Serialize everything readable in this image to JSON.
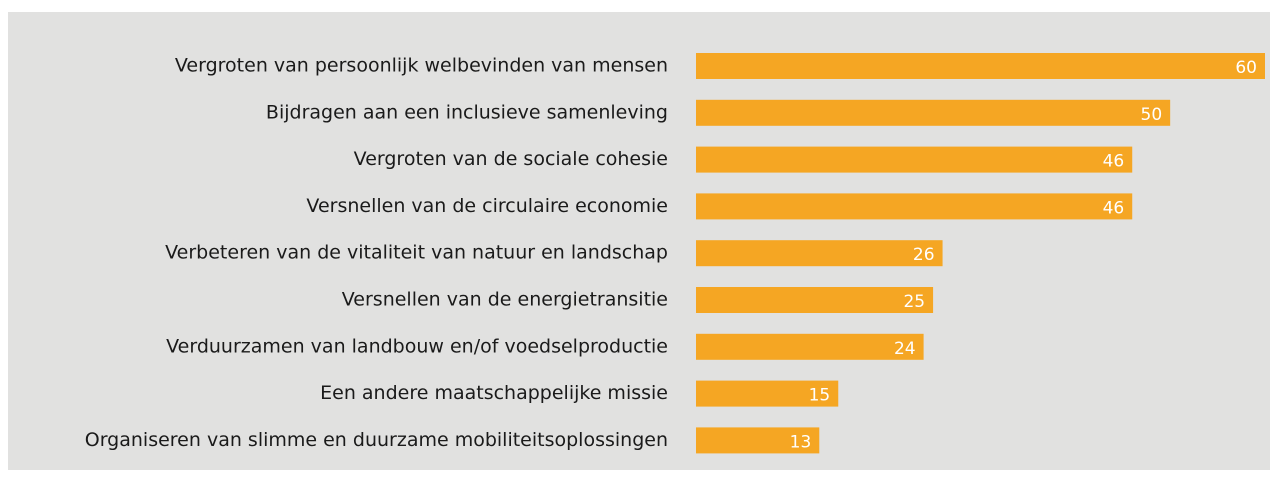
{
  "chart_data": {
    "type": "bar",
    "orientation": "horizontal",
    "categories": [
      "Vergroten van persoonlijk welbevinden van mensen",
      "Bijdragen aan een inclusieve samenleving",
      "Vergroten van de sociale cohesie",
      "Versnellen van de circulaire economie",
      "Verbeteren van de vitaliteit van natuur en landschap",
      "Versnellen van de energietransitie",
      "Verduurzamen van landbouw en/of voedselproductie",
      "Een andere maatschappelijke missie",
      "Organiseren van slimme en duurzame mobiliteitsoplossingen"
    ],
    "values": [
      60,
      50,
      46,
      46,
      26,
      25,
      24,
      15,
      13
    ],
    "color": "#f5a623"
  }
}
